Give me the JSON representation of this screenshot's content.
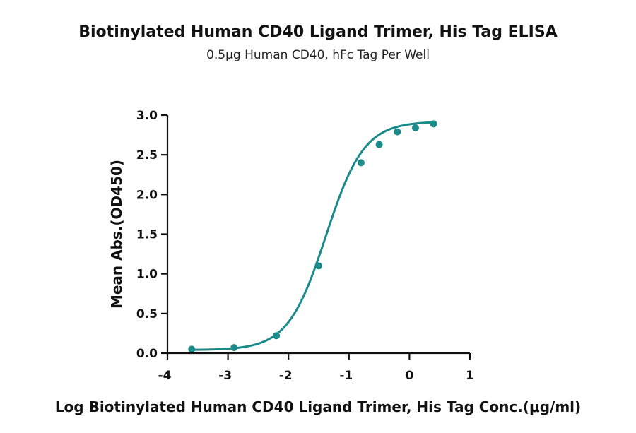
{
  "chart_data": {
    "type": "scatter",
    "title": "Biotinylated Human CD40 Ligand Trimer, His Tag ELISA",
    "subtitle": "0.5μg Human CD40, hFc Tag Per Well",
    "xlabel": "Log Biotinylated Human CD40 Ligand Trimer, His Tag Conc.(μg/ml)",
    "ylabel": "Mean Abs.(OD450)",
    "xlim": [
      -4,
      1
    ],
    "ylim": [
      0,
      3.0
    ],
    "xticks": [
      "-4",
      "-3",
      "-2",
      "-1",
      "0",
      "1"
    ],
    "yticks": [
      "0.0",
      "0.5",
      "1.0",
      "1.5",
      "2.0",
      "2.5",
      "3.0"
    ],
    "grid": false,
    "series": [
      {
        "x": [
          -3.6,
          -2.9,
          -2.2,
          -1.5,
          -0.8,
          -0.5,
          -0.2,
          0.1,
          0.4
        ],
        "y": [
          0.05,
          0.07,
          0.22,
          1.1,
          2.4,
          2.63,
          2.79,
          2.84,
          2.89
        ],
        "fit": "four-parameter logistic"
      }
    ],
    "colors": {
      "series": "#1a8a8a",
      "axis": "#111111"
    }
  }
}
